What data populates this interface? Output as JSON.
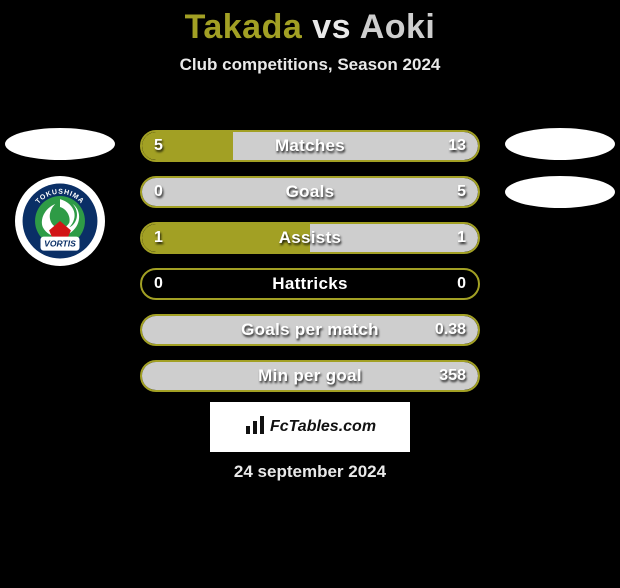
{
  "title": {
    "player1": "Takada",
    "vs": " vs ",
    "player2": "Aoki",
    "player1_color": "#a2a024",
    "vs_color": "#e9e9e9",
    "player2_color": "#cecece"
  },
  "subtitle": {
    "text": "Club competitions, Season 2024",
    "color": "#e9e9e9"
  },
  "accent": {
    "left_color": "#a2a024",
    "right_color": "#cecece",
    "border_color": "#a2a024",
    "text_color": "#ffffff"
  },
  "badges": {
    "left": [
      {
        "type": "ellipse"
      },
      {
        "type": "club",
        "club": "vortis"
      }
    ],
    "right": [
      {
        "type": "ellipse"
      },
      {
        "type": "ellipse"
      }
    ]
  },
  "club_logo": {
    "vortis": {
      "ring_color": "#0a2f66",
      "inner_color": "#2e9b46",
      "swirl_color": "#ffffff",
      "accent_color": "#d11516",
      "top_text": "TOKUSHIMA",
      "bottom_text": "VORTIS"
    }
  },
  "rows": [
    {
      "label": "Matches",
      "left": "5",
      "right": "13",
      "left_pct": 27,
      "right_pct": 73
    },
    {
      "label": "Goals",
      "left": "0",
      "right": "5",
      "left_pct": 0,
      "right_pct": 100
    },
    {
      "label": "Assists",
      "left": "1",
      "right": "1",
      "left_pct": 50,
      "right_pct": 50
    },
    {
      "label": "Hattricks",
      "left": "0",
      "right": "0",
      "left_pct": 0,
      "right_pct": 0
    },
    {
      "label": "Goals per match",
      "left": "",
      "right": "0.38",
      "left_pct": 0,
      "right_pct": 100
    },
    {
      "label": "Min per goal",
      "left": "",
      "right": "358",
      "left_pct": 0,
      "right_pct": 100
    }
  ],
  "logo_strip": {
    "text": "FcTables.com",
    "background": "#ffffff",
    "text_color": "#111111"
  },
  "date": {
    "text": "24 september 2024",
    "color": "#e9e9e9"
  }
}
